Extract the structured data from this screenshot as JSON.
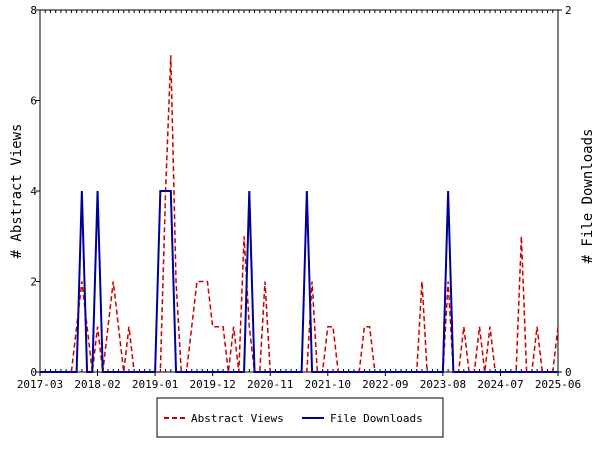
{
  "chart_data": {
    "type": "line",
    "ylabel_left": "# Abstract Views",
    "ylabel_right": "# File Downloads",
    "x_tick_labels": [
      "2017-03",
      "2018-02",
      "2019-01",
      "2019-12",
      "2020-11",
      "2021-10",
      "2022-09",
      "2023-08",
      "2024-07",
      "2025-06"
    ],
    "x_range_months": [
      "2017-03",
      "2025-06"
    ],
    "ylim_left": [
      0,
      8
    ],
    "y_ticks_left": [
      0,
      2,
      4,
      6,
      8
    ],
    "ylim_right": [
      0,
      2
    ],
    "y_ticks_right": [
      0,
      2
    ],
    "grid": false,
    "legend_placement": "bottom-center",
    "series": [
      {
        "name": "Abstract Views",
        "axis": "left",
        "color": "#cc0000",
        "style": "dashed",
        "points": [
          [
            "2017-03",
            0
          ],
          [
            "2017-04",
            0
          ],
          [
            "2017-05",
            0
          ],
          [
            "2017-06",
            0
          ],
          [
            "2017-07",
            0
          ],
          [
            "2017-08",
            0
          ],
          [
            "2017-09",
            0
          ],
          [
            "2017-10",
            1
          ],
          [
            "2017-11",
            2
          ],
          [
            "2017-12",
            1
          ],
          [
            "2018-01",
            0
          ],
          [
            "2018-02",
            1
          ],
          [
            "2018-03",
            0
          ],
          [
            "2018-04",
            1
          ],
          [
            "2018-05",
            2
          ],
          [
            "2018-06",
            1
          ],
          [
            "2018-07",
            0
          ],
          [
            "2018-08",
            1
          ],
          [
            "2018-09",
            0
          ],
          [
            "2018-10",
            0
          ],
          [
            "2018-11",
            0
          ],
          [
            "2018-12",
            0
          ],
          [
            "2019-01",
            0
          ],
          [
            "2019-02",
            0
          ],
          [
            "2019-03",
            4
          ],
          [
            "2019-04",
            7
          ],
          [
            "2019-05",
            2
          ],
          [
            "2019-06",
            0
          ],
          [
            "2019-07",
            0
          ],
          [
            "2019-08",
            1
          ],
          [
            "2019-09",
            2
          ],
          [
            "2019-10",
            2
          ],
          [
            "2019-11",
            2
          ],
          [
            "2019-12",
            1
          ],
          [
            "2020-01",
            1
          ],
          [
            "2020-02",
            1
          ],
          [
            "2020-03",
            0
          ],
          [
            "2020-04",
            1
          ],
          [
            "2020-05",
            0
          ],
          [
            "2020-06",
            3
          ],
          [
            "2020-07",
            1
          ],
          [
            "2020-08",
            0
          ],
          [
            "2020-09",
            0
          ],
          [
            "2020-10",
            2
          ],
          [
            "2020-11",
            0
          ],
          [
            "2020-12",
            0
          ],
          [
            "2021-01",
            0
          ],
          [
            "2021-02",
            0
          ],
          [
            "2021-03",
            0
          ],
          [
            "2021-04",
            0
          ],
          [
            "2021-05",
            0
          ],
          [
            "2021-06",
            0
          ],
          [
            "2021-07",
            2
          ],
          [
            "2021-08",
            0
          ],
          [
            "2021-09",
            0
          ],
          [
            "2021-10",
            1
          ],
          [
            "2021-11",
            1
          ],
          [
            "2021-12",
            0
          ],
          [
            "2022-01",
            0
          ],
          [
            "2022-02",
            0
          ],
          [
            "2022-03",
            0
          ],
          [
            "2022-04",
            0
          ],
          [
            "2022-05",
            1
          ],
          [
            "2022-06",
            1
          ],
          [
            "2022-07",
            0
          ],
          [
            "2022-08",
            0
          ],
          [
            "2022-09",
            0
          ],
          [
            "2022-10",
            0
          ],
          [
            "2022-11",
            0
          ],
          [
            "2022-12",
            0
          ],
          [
            "2023-01",
            0
          ],
          [
            "2023-02",
            0
          ],
          [
            "2023-03",
            0
          ],
          [
            "2023-04",
            2
          ],
          [
            "2023-05",
            0
          ],
          [
            "2023-06",
            0
          ],
          [
            "2023-07",
            0
          ],
          [
            "2023-08",
            0
          ],
          [
            "2023-09",
            2
          ],
          [
            "2023-10",
            0
          ],
          [
            "2023-11",
            0
          ],
          [
            "2023-12",
            1
          ],
          [
            "2024-01",
            0
          ],
          [
            "2024-02",
            0
          ],
          [
            "2024-03",
            1
          ],
          [
            "2024-04",
            0
          ],
          [
            "2024-05",
            1
          ],
          [
            "2024-06",
            0
          ],
          [
            "2024-07",
            0
          ],
          [
            "2024-08",
            0
          ],
          [
            "2024-09",
            0
          ],
          [
            "2024-10",
            0
          ],
          [
            "2024-11",
            3
          ],
          [
            "2024-12",
            0
          ],
          [
            "2025-01",
            0
          ],
          [
            "2025-02",
            1
          ],
          [
            "2025-03",
            0
          ],
          [
            "2025-04",
            0
          ],
          [
            "2025-05",
            0
          ],
          [
            "2025-06",
            1
          ]
        ]
      },
      {
        "name": "File Downloads",
        "axis": "right",
        "color": "#000099",
        "style": "solid",
        "points": [
          [
            "2017-03",
            0
          ],
          [
            "2017-04",
            0
          ],
          [
            "2017-05",
            0
          ],
          [
            "2017-06",
            0
          ],
          [
            "2017-07",
            0
          ],
          [
            "2017-08",
            0
          ],
          [
            "2017-09",
            0
          ],
          [
            "2017-10",
            0
          ],
          [
            "2017-11",
            1
          ],
          [
            "2017-12",
            0
          ],
          [
            "2018-01",
            0
          ],
          [
            "2018-02",
            1
          ],
          [
            "2018-03",
            0
          ],
          [
            "2018-04",
            0
          ],
          [
            "2018-05",
            0
          ],
          [
            "2018-06",
            0
          ],
          [
            "2018-07",
            0
          ],
          [
            "2018-08",
            0
          ],
          [
            "2018-09",
            0
          ],
          [
            "2018-10",
            0
          ],
          [
            "2018-11",
            0
          ],
          [
            "2018-12",
            0
          ],
          [
            "2019-01",
            0
          ],
          [
            "2019-02",
            1
          ],
          [
            "2019-03",
            1
          ],
          [
            "2019-04",
            1
          ],
          [
            "2019-05",
            0
          ],
          [
            "2019-06",
            0
          ],
          [
            "2019-07",
            0
          ],
          [
            "2019-08",
            0
          ],
          [
            "2019-09",
            0
          ],
          [
            "2019-10",
            0
          ],
          [
            "2019-11",
            0
          ],
          [
            "2019-12",
            0
          ],
          [
            "2020-01",
            0
          ],
          [
            "2020-02",
            0
          ],
          [
            "2020-03",
            0
          ],
          [
            "2020-04",
            0
          ],
          [
            "2020-05",
            0
          ],
          [
            "2020-06",
            0
          ],
          [
            "2020-07",
            1
          ],
          [
            "2020-08",
            0
          ],
          [
            "2020-09",
            0
          ],
          [
            "2020-10",
            0
          ],
          [
            "2020-11",
            0
          ],
          [
            "2020-12",
            0
          ],
          [
            "2021-01",
            0
          ],
          [
            "2021-02",
            0
          ],
          [
            "2021-03",
            0
          ],
          [
            "2021-04",
            0
          ],
          [
            "2021-05",
            0
          ],
          [
            "2021-06",
            1
          ],
          [
            "2021-07",
            0
          ],
          [
            "2021-08",
            0
          ],
          [
            "2021-09",
            0
          ],
          [
            "2021-10",
            0
          ],
          [
            "2021-11",
            0
          ],
          [
            "2021-12",
            0
          ],
          [
            "2022-01",
            0
          ],
          [
            "2022-02",
            0
          ],
          [
            "2022-03",
            0
          ],
          [
            "2022-04",
            0
          ],
          [
            "2022-05",
            0
          ],
          [
            "2022-06",
            0
          ],
          [
            "2022-07",
            0
          ],
          [
            "2022-08",
            0
          ],
          [
            "2022-09",
            0
          ],
          [
            "2022-10",
            0
          ],
          [
            "2022-11",
            0
          ],
          [
            "2022-12",
            0
          ],
          [
            "2023-01",
            0
          ],
          [
            "2023-02",
            0
          ],
          [
            "2023-03",
            0
          ],
          [
            "2023-04",
            0
          ],
          [
            "2023-05",
            0
          ],
          [
            "2023-06",
            0
          ],
          [
            "2023-07",
            0
          ],
          [
            "2023-08",
            0
          ],
          [
            "2023-09",
            1
          ],
          [
            "2023-10",
            0
          ],
          [
            "2023-11",
            0
          ],
          [
            "2023-12",
            0
          ],
          [
            "2024-01",
            0
          ],
          [
            "2024-02",
            0
          ],
          [
            "2024-03",
            0
          ],
          [
            "2024-04",
            0
          ],
          [
            "2024-05",
            0
          ],
          [
            "2024-06",
            0
          ],
          [
            "2024-07",
            0
          ],
          [
            "2024-08",
            0
          ],
          [
            "2024-09",
            0
          ],
          [
            "2024-10",
            0
          ],
          [
            "2024-11",
            0
          ],
          [
            "2024-12",
            0
          ],
          [
            "2025-01",
            0
          ],
          [
            "2025-02",
            0
          ],
          [
            "2025-03",
            0
          ],
          [
            "2025-04",
            0
          ],
          [
            "2025-05",
            0
          ],
          [
            "2025-06",
            0
          ]
        ]
      }
    ]
  }
}
